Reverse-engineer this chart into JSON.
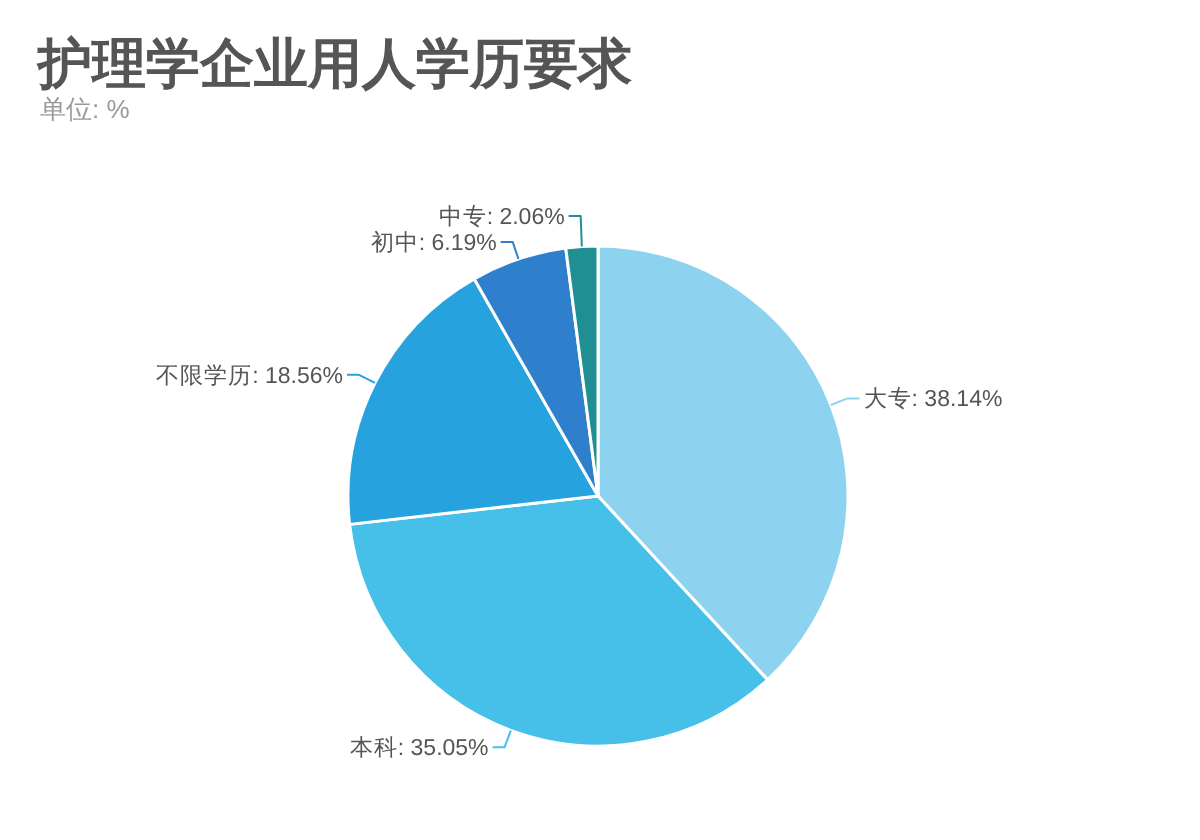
{
  "chart_data": {
    "type": "pie",
    "title": "护理学企业用人学历要求",
    "subtitle": "单位: %",
    "categories": [
      "大专",
      "本科",
      "不限学历",
      "初中",
      "中专"
    ],
    "values": [
      38.14,
      35.05,
      18.56,
      6.19,
      2.06
    ],
    "value_labels": [
      "38.14%",
      "35.05%",
      "18.56%",
      "6.19%",
      "2.06%"
    ],
    "colors": [
      "#8dd3f0",
      "#46c0e8",
      "#26a3de",
      "#2e80cc",
      "#1f8f93"
    ]
  }
}
